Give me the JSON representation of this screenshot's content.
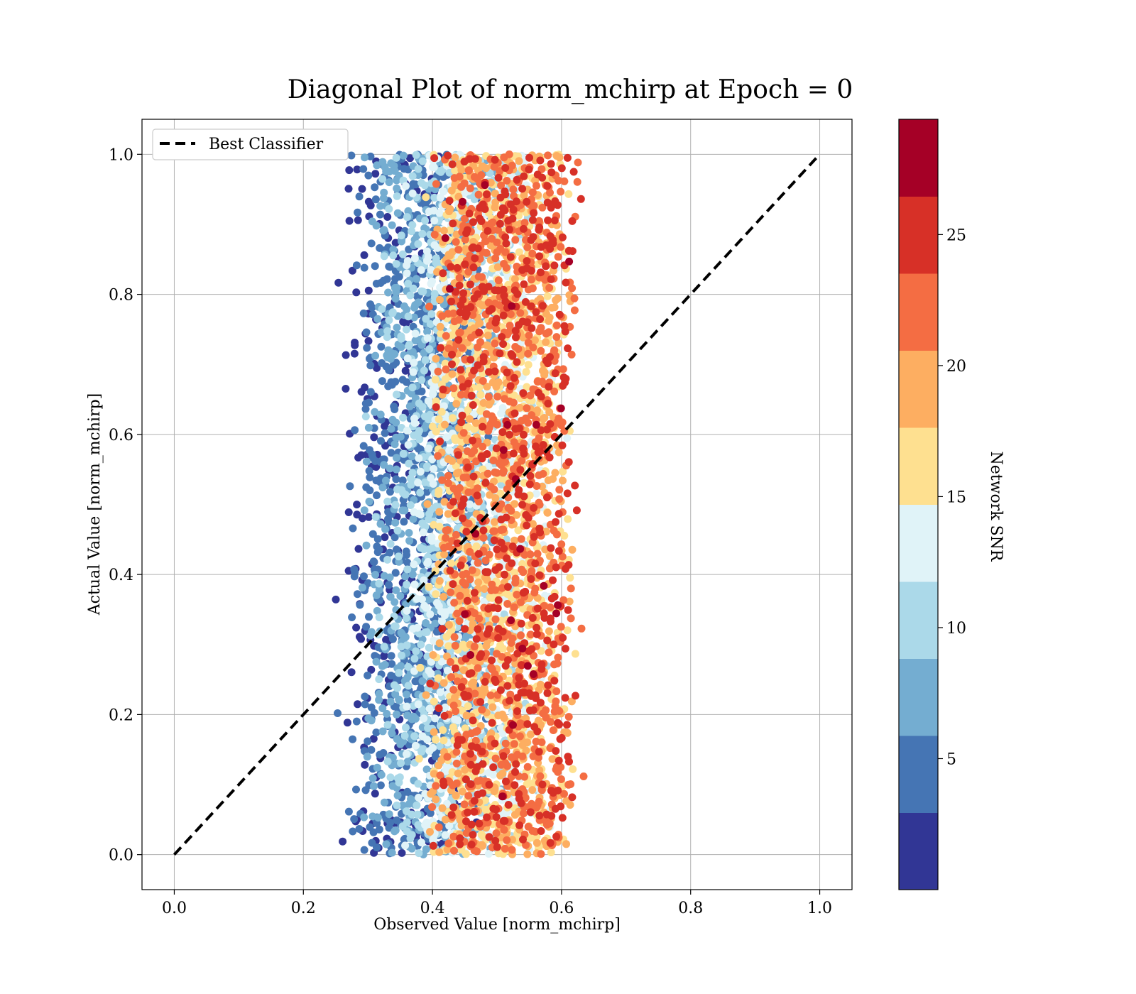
{
  "chart_data": {
    "type": "scatter",
    "title": "Diagonal Plot of norm_mchirp at Epoch = 0",
    "xlabel": "Observed Value [norm_mchirp]",
    "ylabel": "Actual Value [norm_mchirp]",
    "xlim": [
      -0.05,
      1.05
    ],
    "ylim": [
      -0.05,
      1.05
    ],
    "xticks": [
      "0.0",
      "0.2",
      "0.4",
      "0.6",
      "0.8",
      "1.0"
    ],
    "yticks": [
      "0.0",
      "0.2",
      "0.4",
      "0.6",
      "0.8",
      "1.0"
    ],
    "grid": true,
    "legend": {
      "position": "top-left",
      "entries": [
        "Best Classifier"
      ]
    },
    "reference_line": {
      "name": "Best Classifier",
      "x": [
        0,
        1
      ],
      "y": [
        0,
        1
      ],
      "style": "dashed",
      "color": "#000000"
    },
    "colorbar": {
      "label": "Network SNR",
      "range": [
        0,
        29.4
      ],
      "ticks": [
        "5",
        "10",
        "15",
        "20",
        "25"
      ],
      "levels": [
        {
          "from": 0.0,
          "to": 2.94,
          "color": "#313695"
        },
        {
          "from": 2.94,
          "to": 5.88,
          "color": "#4575b4"
        },
        {
          "from": 5.88,
          "to": 8.82,
          "color": "#74add1"
        },
        {
          "from": 8.82,
          "to": 11.76,
          "color": "#abd9e9"
        },
        {
          "from": 11.76,
          "to": 14.7,
          "color": "#e0f3f8"
        },
        {
          "from": 14.7,
          "to": 17.64,
          "color": "#fee090"
        },
        {
          "from": 17.64,
          "to": 20.58,
          "color": "#fdae61"
        },
        {
          "from": 20.58,
          "to": 23.52,
          "color": "#f46d43"
        },
        {
          "from": 23.52,
          "to": 26.46,
          "color": "#d73027"
        },
        {
          "from": 26.46,
          "to": 29.4,
          "color": "#a50026"
        }
      ]
    },
    "scatter_distribution": {
      "point_count": 6000,
      "x_center_by_snr": [
        [
          0,
          0.36
        ],
        [
          5,
          0.385
        ],
        [
          10,
          0.43
        ],
        [
          15,
          0.5
        ],
        [
          20,
          0.51
        ],
        [
          27,
          0.52
        ]
      ],
      "x_spread": 0.09,
      "y_range": [
        0.0,
        1.0
      ],
      "snr_range": [
        0,
        29.4
      ]
    }
  }
}
